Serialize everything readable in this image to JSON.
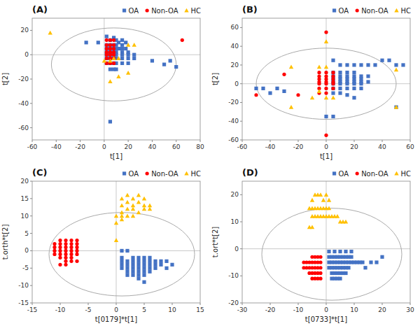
{
  "chart_data": [
    {
      "type": "scatter",
      "title": "(A)",
      "x_label": "t[1]",
      "y_label": "t[2]",
      "xlim": [
        -60,
        80
      ],
      "ylim": [
        -70,
        30
      ],
      "xticks": [
        -60,
        -40,
        -20,
        0,
        20,
        40,
        60,
        80
      ],
      "yticks": [
        -60,
        -40,
        -20,
        0,
        20
      ],
      "grid": false,
      "legend": "upper right",
      "ellipse": {
        "cx": 8,
        "cy": -8,
        "rx": 52,
        "ry": 30
      },
      "reference_lines": {
        "x": [
          0
        ],
        "y": [
          0
        ]
      },
      "series": [
        {
          "name": "OA",
          "color": "#4472C4",
          "marker": "square",
          "x": [
            -15,
            -5,
            2,
            5,
            8,
            10,
            12,
            15,
            18,
            2,
            5,
            8,
            10,
            15,
            2,
            5,
            8,
            10,
            12,
            15,
            18,
            2,
            5,
            8,
            10,
            15,
            20,
            2,
            5,
            8,
            10,
            15,
            20,
            25,
            2,
            5,
            8,
            10,
            15,
            20,
            25,
            2,
            5,
            8,
            10,
            15,
            20,
            5,
            8,
            10,
            40,
            50,
            55,
            60,
            5
          ],
          "values": [
            10,
            10,
            15,
            12,
            14,
            12,
            10,
            12,
            10,
            8,
            8,
            8,
            8,
            8,
            5,
            5,
            5,
            5,
            5,
            5,
            5,
            2,
            2,
            2,
            2,
            2,
            2,
            0,
            0,
            0,
            0,
            0,
            0,
            0,
            -3,
            -3,
            -3,
            -3,
            -3,
            -3,
            -3,
            -7,
            -7,
            -7,
            -7,
            -7,
            -7,
            -12,
            -12,
            -12,
            -5,
            -8,
            -5,
            -10,
            -55
          ]
        },
        {
          "name": "Non-OA",
          "color": "#FF0000",
          "marker": "circle",
          "x": [
            2,
            5,
            8,
            2,
            5,
            8,
            2,
            5,
            8,
            2,
            5,
            8,
            2,
            5,
            8,
            2,
            5,
            8,
            2,
            5,
            8,
            65
          ],
          "values": [
            12,
            12,
            12,
            8,
            8,
            8,
            5,
            5,
            5,
            2,
            2,
            2,
            0,
            0,
            0,
            -3,
            -3,
            -3,
            -7,
            -7,
            -7,
            12
          ]
        },
        {
          "name": "HC",
          "color": "#FFC000",
          "marker": "triangle",
          "x": [
            -45,
            20,
            25,
            8,
            12,
            0,
            5,
            12,
            5,
            20
          ],
          "values": [
            18,
            8,
            8,
            -3,
            -3,
            -5,
            -5,
            -18,
            -22,
            -15
          ]
        }
      ]
    },
    {
      "type": "scatter",
      "title": "(B)",
      "x_label": "t[1]",
      "y_label": "t[2]",
      "xlim": [
        -60,
        60
      ],
      "ylim": [
        -60,
        70
      ],
      "xticks": [
        -60,
        -40,
        -20,
        0,
        20,
        40,
        60
      ],
      "yticks": [
        -60,
        -40,
        -20,
        0,
        20,
        40,
        60
      ],
      "grid": false,
      "legend": "upper right",
      "ellipse": {
        "cx": 0,
        "cy": 0,
        "rx": 50,
        "ry": 38
      },
      "reference_lines": {
        "x": [
          0
        ],
        "y": [
          0
        ]
      },
      "series": [
        {
          "name": "OA",
          "color": "#4472C4",
          "marker": "square",
          "x": [
            5,
            10,
            15,
            20,
            25,
            30,
            35,
            40,
            45,
            50,
            5,
            10,
            15,
            20,
            5,
            10,
            15,
            20,
            25,
            30,
            5,
            10,
            15,
            20,
            25,
            5,
            10,
            15,
            20,
            25,
            30,
            5,
            10,
            15,
            20,
            25,
            5,
            10,
            15,
            20,
            25,
            5,
            10,
            15,
            20,
            -30,
            -35,
            -40,
            -45,
            -50,
            0,
            5,
            50,
            55
          ],
          "values": [
            25,
            20,
            20,
            20,
            20,
            20,
            20,
            25,
            25,
            20,
            12,
            12,
            12,
            12,
            8,
            8,
            8,
            8,
            8,
            8,
            5,
            5,
            5,
            5,
            5,
            2,
            2,
            2,
            2,
            2,
            2,
            0,
            0,
            0,
            0,
            0,
            -5,
            -5,
            -5,
            -5,
            -5,
            -10,
            -10,
            -12,
            -15,
            -8,
            -5,
            -10,
            -5,
            -5,
            -35,
            -35,
            -25,
            20
          ]
        },
        {
          "name": "Non-OA",
          "color": "#FF0000",
          "marker": "circle",
          "x": [
            0,
            -5,
            0,
            5,
            -5,
            0,
            5,
            -5,
            0,
            5,
            -5,
            0,
            5,
            -5,
            0,
            5,
            -5,
            0,
            5,
            -5,
            0,
            -20,
            -30,
            -50,
            0
          ],
          "values": [
            55,
            12,
            12,
            12,
            8,
            8,
            8,
            5,
            5,
            5,
            2,
            2,
            2,
            0,
            0,
            0,
            -5,
            -5,
            -5,
            -10,
            -10,
            -12,
            10,
            -12,
            -55
          ]
        },
        {
          "name": "HC",
          "color": "#FFC000",
          "marker": "triangle",
          "x": [
            0,
            -5,
            0,
            -5,
            0,
            5,
            -10,
            -25,
            -25,
            50,
            50
          ],
          "values": [
            45,
            18,
            18,
            -8,
            -15,
            -15,
            -15,
            18,
            -25,
            -25,
            15
          ]
        }
      ]
    },
    {
      "type": "scatter",
      "title": "(C)",
      "x_label": "t[0179]*t[1]",
      "y_label": "t.orth*t[2]",
      "xlim": [
        -15,
        15
      ],
      "ylim": [
        -15,
        20
      ],
      "xticks": [
        -15,
        -10,
        -5,
        0,
        5,
        10,
        15
      ],
      "yticks": [
        -15,
        -10,
        -5,
        0,
        5,
        10,
        15,
        20
      ],
      "grid": false,
      "legend": "upper right",
      "ellipse": {
        "cx": 1,
        "cy": -1,
        "rx": 13,
        "ry": 12
      },
      "reference_lines": {
        "x": [
          0
        ],
        "y": [
          0
        ]
      },
      "series": [
        {
          "name": "OA",
          "color": "#4472C4",
          "marker": "square",
          "x": [
            1,
            2,
            3,
            4,
            5,
            6,
            7,
            8,
            1,
            2,
            3,
            4,
            5,
            6,
            7,
            8,
            1,
            2,
            3,
            4,
            5,
            6,
            7,
            2,
            3,
            4,
            5,
            6,
            2,
            3,
            4,
            5,
            3,
            4,
            5,
            6,
            1,
            1,
            2,
            4,
            5,
            9,
            9,
            10
          ],
          "values": [
            -3,
            -3,
            -3,
            -3,
            -3,
            -3,
            -3,
            -3,
            -4,
            -4,
            -4,
            -4,
            -4,
            -4,
            -4,
            -4,
            -5,
            -5,
            -5,
            -5,
            -5,
            -5,
            -5,
            -6,
            -6,
            -6,
            -6,
            -6,
            -7,
            -7,
            -7,
            -7,
            -2,
            -2,
            -2,
            -2,
            -2,
            0,
            0,
            -8,
            -9,
            -3,
            -5,
            -4
          ]
        },
        {
          "name": "Non-OA",
          "color": "#FF0000",
          "marker": "circle",
          "x": [
            -8,
            -9,
            -10,
            -11,
            -8,
            -9,
            -10,
            -11,
            -8,
            -9,
            -10,
            -11,
            -8,
            -9,
            -10,
            -11,
            -7,
            -8,
            -9,
            -10,
            -7,
            -7,
            -7,
            -7,
            -8,
            -9,
            -10,
            -7,
            -8,
            -9,
            -9,
            -10
          ],
          "values": [
            2,
            2,
            2,
            2,
            1,
            1,
            1,
            1,
            0,
            0,
            0,
            0,
            -1,
            -1,
            -1,
            -1,
            -1,
            -2,
            -2,
            -2,
            0,
            1,
            2,
            3,
            3,
            3,
            3,
            -3,
            -3,
            -3,
            -4,
            -4
          ]
        },
        {
          "name": "HC",
          "color": "#FFC000",
          "marker": "triangle",
          "x": [
            1,
            2,
            3,
            4,
            5,
            1,
            2,
            3,
            4,
            5,
            6,
            1,
            2,
            3,
            4,
            5,
            6,
            0,
            1,
            2,
            3,
            0,
            1,
            0
          ],
          "values": [
            15,
            16,
            15,
            16,
            15,
            13,
            14,
            13,
            14,
            13,
            13,
            11,
            12,
            12,
            11,
            12,
            12,
            10,
            10,
            10,
            10,
            8,
            9,
            3
          ]
        }
      ]
    },
    {
      "type": "scatter",
      "title": "(D)",
      "x_label": "t[0733]*t[1]",
      "y_label": "t.ort*t[2]",
      "xlim": [
        -30,
        30
      ],
      "ylim": [
        -20,
        25
      ],
      "xticks": [
        -30,
        -20,
        -10,
        0,
        10,
        20,
        30
      ],
      "yticks": [
        -20,
        -10,
        0,
        10,
        20
      ],
      "grid": false,
      "legend": "upper right",
      "ellipse": {
        "cx": 2,
        "cy": -2,
        "rx": 25,
        "ry": 17
      },
      "reference_lines": {
        "x": [
          0
        ],
        "y": [
          0
        ]
      },
      "series": [
        {
          "name": "OA",
          "color": "#4472C4",
          "marker": "square",
          "x": [
            1,
            2,
            3,
            4,
            5,
            6,
            7,
            8,
            9,
            1,
            2,
            3,
            4,
            5,
            6,
            7,
            8,
            9,
            1,
            2,
            3,
            4,
            5,
            6,
            7,
            8,
            2,
            3,
            4,
            5,
            6,
            7,
            2,
            3,
            4,
            5,
            1,
            3,
            5,
            7,
            9,
            10,
            11,
            12,
            13,
            14,
            16,
            18,
            20
          ],
          "values": [
            -3,
            -3,
            -3,
            -3,
            -3,
            -3,
            -3,
            -3,
            -3,
            -5,
            -5,
            -5,
            -5,
            -5,
            -5,
            -5,
            -5,
            -5,
            -7,
            -7,
            -7,
            -7,
            -7,
            -7,
            -7,
            -7,
            -9,
            -9,
            -9,
            -9,
            -9,
            -9,
            -11,
            -11,
            -11,
            -11,
            -1,
            -1,
            -1,
            -1,
            -1,
            -5,
            -5,
            -5,
            -5,
            -7,
            -5,
            -5,
            -3
          ]
        },
        {
          "name": "Non-OA",
          "color": "#FF0000",
          "marker": "circle",
          "x": [
            -2,
            -3,
            -4,
            -5,
            -6,
            -7,
            -8,
            -2,
            -3,
            -4,
            -5,
            -6,
            -7,
            -8,
            -2,
            -3,
            -4,
            -5,
            -6,
            -2,
            -3,
            -4,
            -5,
            -2,
            -3,
            -4,
            -5
          ],
          "values": [
            -5,
            -5,
            -5,
            -5,
            -5,
            -5,
            -5,
            -7,
            -7,
            -7,
            -7,
            -7,
            -7,
            -7,
            -9,
            -9,
            -9,
            -9,
            -9,
            -11,
            -11,
            -11,
            -11,
            -3,
            -3,
            -3,
            -3
          ]
        },
        {
          "name": "HC",
          "color": "#FFC000",
          "marker": "triangle",
          "x": [
            -5,
            -4,
            -3,
            -2,
            -1,
            0,
            1,
            -6,
            -5,
            -4,
            -3,
            -2,
            -1,
            0,
            1,
            -5,
            -4,
            -3,
            -2,
            -1,
            0,
            1,
            2,
            3,
            4,
            5,
            6,
            7,
            -6,
            -5
          ],
          "values": [
            18,
            20,
            20,
            20,
            18,
            20,
            18,
            15,
            15,
            15,
            15,
            15,
            15,
            15,
            15,
            12,
            12,
            12,
            12,
            12,
            12,
            12,
            12,
            12,
            12,
            10,
            10,
            10,
            8,
            8
          ]
        }
      ]
    }
  ]
}
